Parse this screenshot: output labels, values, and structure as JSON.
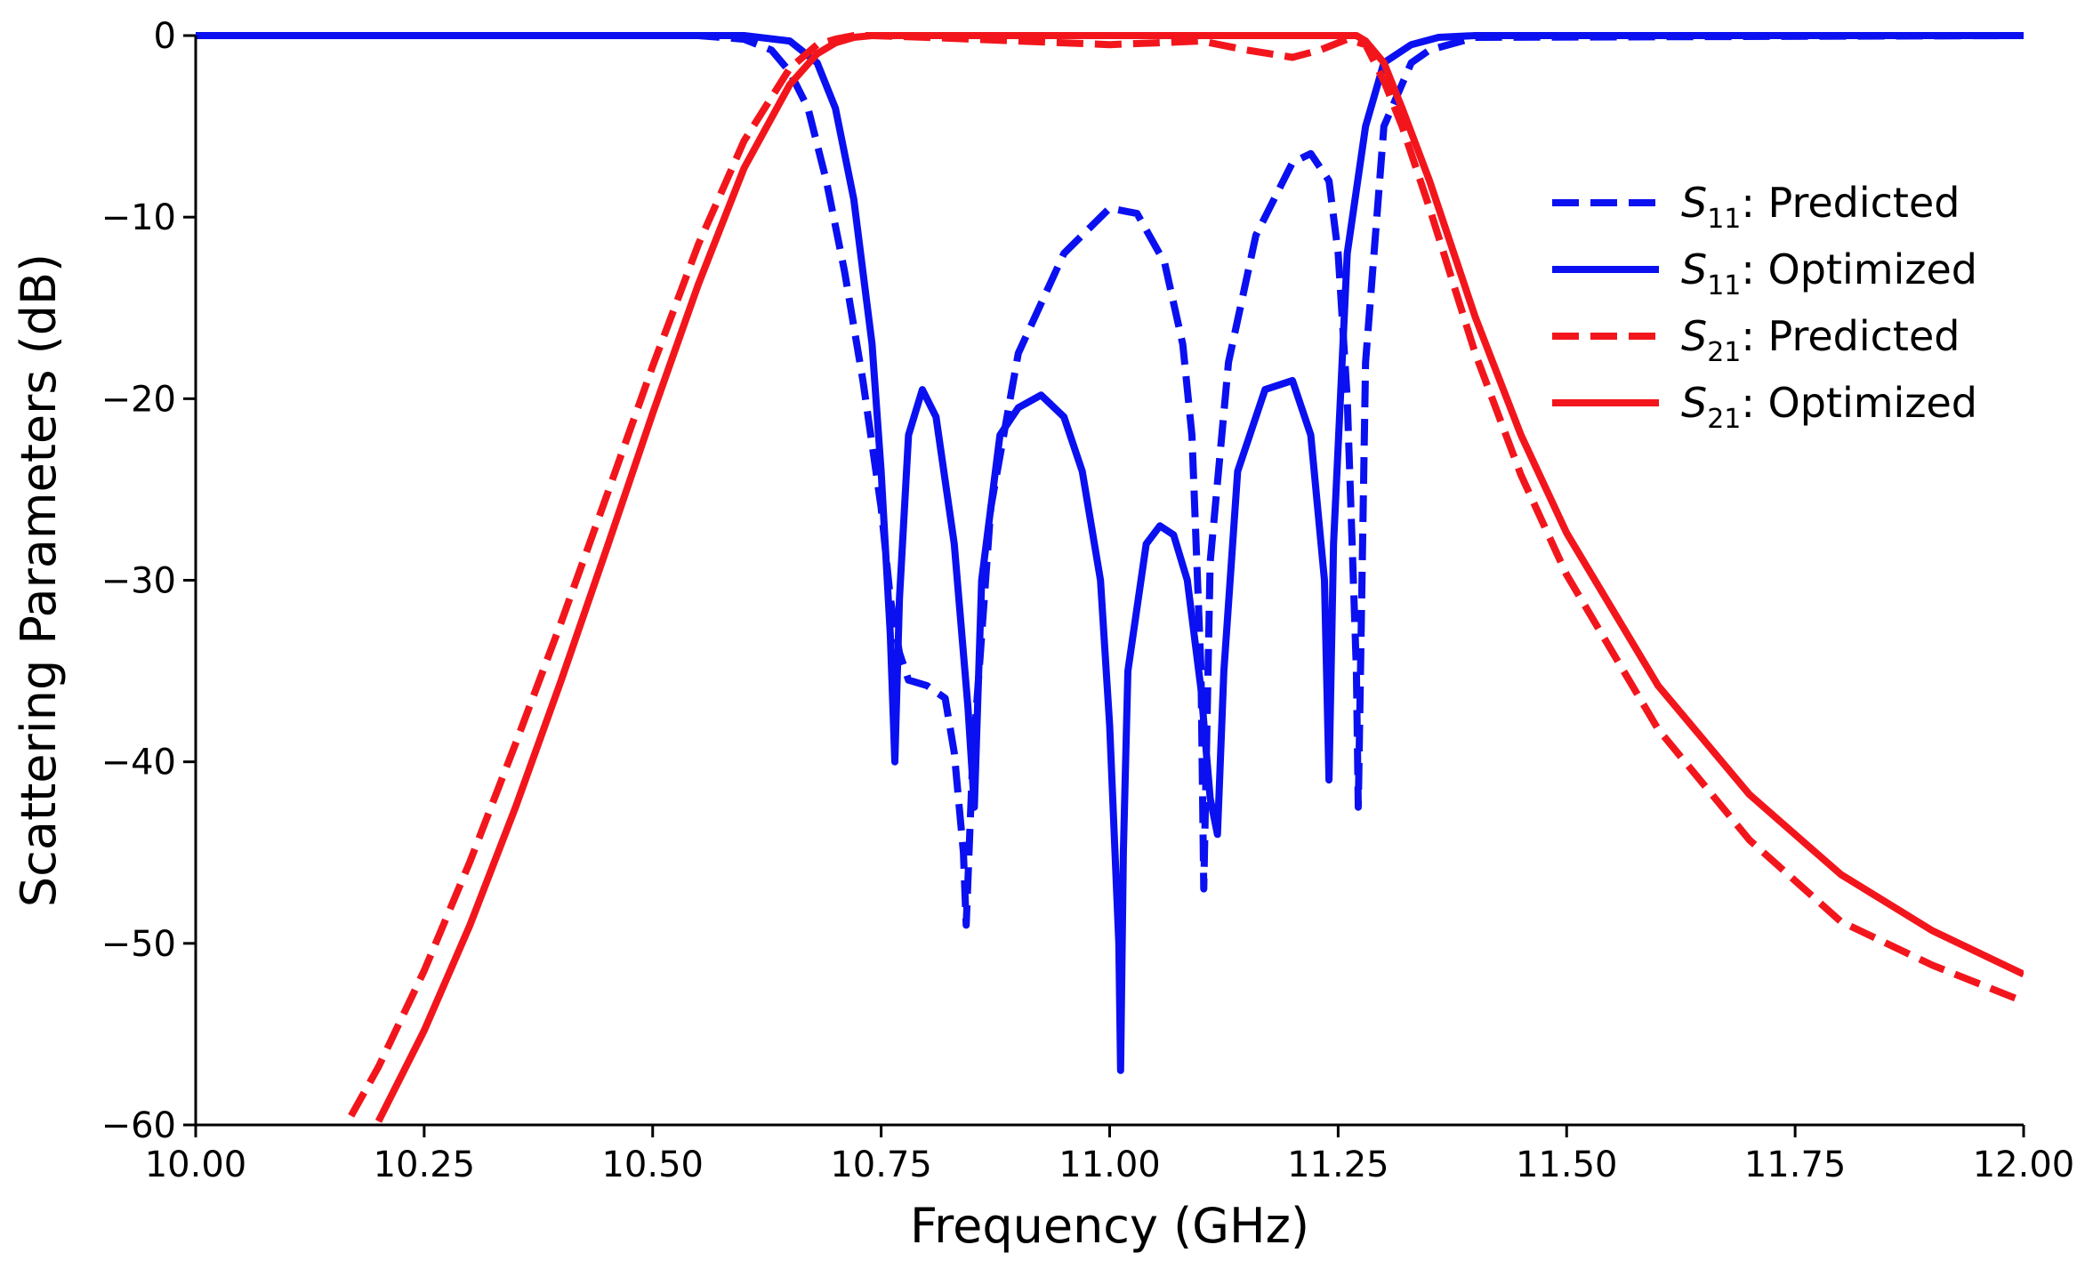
{
  "chart_data": {
    "type": "line",
    "title": "",
    "xlabel": "Frequency (GHz)",
    "ylabel": "Scattering Parameters (dB)",
    "xlim": [
      10.0,
      12.0
    ],
    "ylim": [
      -60,
      0
    ],
    "xticks": [
      10.0,
      10.25,
      10.5,
      10.75,
      11.0,
      11.25,
      11.5,
      11.75,
      12.0
    ],
    "xtick_labels": [
      "10.00",
      "10.25",
      "10.50",
      "10.75",
      "11.00",
      "11.25",
      "11.50",
      "11.75",
      "12.00"
    ],
    "yticks": [
      0,
      -10,
      -20,
      -30,
      -40,
      -50,
      -60
    ],
    "ytick_labels": [
      "0",
      "−10",
      "−20",
      "−30",
      "−40",
      "−50",
      "−60"
    ],
    "grid": false,
    "legend_position": "right",
    "series": [
      {
        "name": "S11: Predicted",
        "legend_base": "S",
        "legend_sub": "11",
        "legend_suffix": ": Predicted",
        "color": "#0a10f0",
        "style": "dashed",
        "x": [
          10.0,
          10.55,
          10.6,
          10.63,
          10.65,
          10.67,
          10.69,
          10.71,
          10.73,
          10.75,
          10.76,
          10.77,
          10.78,
          10.8,
          10.82,
          10.83,
          10.84,
          10.843,
          10.85,
          10.87,
          10.9,
          10.95,
          11.0,
          11.03,
          11.06,
          11.08,
          11.09,
          11.1,
          11.103,
          11.11,
          11.13,
          11.16,
          11.2,
          11.22,
          11.24,
          11.25,
          11.26,
          11.27,
          11.272,
          11.28,
          11.3,
          11.33,
          11.35,
          11.4,
          12.0
        ],
        "values": [
          0,
          0,
          -0.2,
          -0.8,
          -2,
          -4,
          -8,
          -13,
          -19,
          -26,
          -31,
          -34,
          -35.5,
          -35.8,
          -36.5,
          -39.5,
          -45,
          -49,
          -40,
          -26,
          -17.5,
          -12,
          -9.5,
          -9.8,
          -12.5,
          -17,
          -22,
          -35,
          -47,
          -29,
          -18,
          -11,
          -7,
          -6.5,
          -8,
          -12,
          -20,
          -35,
          -42.5,
          -18,
          -5,
          -1.5,
          -0.8,
          -0.1,
          0
        ]
      },
      {
        "name": "S11: Optimized",
        "legend_base": "S",
        "legend_sub": "11",
        "legend_suffix": ": Optimized",
        "color": "#0a10f0",
        "style": "solid",
        "x": [
          10.0,
          10.6,
          10.65,
          10.68,
          10.7,
          10.72,
          10.74,
          10.75,
          10.76,
          10.765,
          10.77,
          10.78,
          10.795,
          10.81,
          10.83,
          10.845,
          10.852,
          10.86,
          10.88,
          10.9,
          10.925,
          10.95,
          10.97,
          10.99,
          11.0,
          11.01,
          11.012,
          11.015,
          11.02,
          11.04,
          11.055,
          11.07,
          11.085,
          11.1,
          11.11,
          11.118,
          11.125,
          11.14,
          11.17,
          11.2,
          11.22,
          11.235,
          11.24,
          11.245,
          11.26,
          11.28,
          11.3,
          11.33,
          11.36,
          11.4,
          12.0
        ],
        "values": [
          0,
          0,
          -0.3,
          -1.5,
          -4,
          -9,
          -17,
          -24,
          -33,
          -40,
          -31,
          -22,
          -19.5,
          -21,
          -28,
          -37,
          -42.5,
          -30,
          -22,
          -20.5,
          -19.8,
          -21,
          -24,
          -30,
          -38,
          -50,
          -57,
          -45,
          -35,
          -28,
          -27,
          -27.5,
          -30,
          -36,
          -42,
          -44,
          -35,
          -24,
          -19.5,
          -19,
          -22,
          -30,
          -41,
          -28,
          -12,
          -5,
          -1.5,
          -0.5,
          -0.1,
          0,
          0
        ]
      },
      {
        "name": "S21: Predicted",
        "legend_base": "S",
        "legend_sub": "21",
        "legend_suffix": ": Predicted",
        "color": "#f2161c",
        "style": "dashed",
        "x": [
          10.17,
          10.2,
          10.25,
          10.3,
          10.35,
          10.4,
          10.45,
          10.5,
          10.55,
          10.6,
          10.65,
          10.68,
          10.7,
          10.72,
          10.74,
          10.8,
          10.9,
          11.0,
          11.05,
          11.1,
          11.15,
          11.2,
          11.23,
          11.26,
          11.28,
          11.3,
          11.32,
          11.35,
          11.4,
          11.45,
          11.5,
          11.6,
          11.7,
          11.8,
          11.9,
          12.0
        ],
        "values": [
          -59.5,
          -56.8,
          -51.5,
          -45.5,
          -39,
          -32.3,
          -25.3,
          -18.2,
          -11.5,
          -5.8,
          -1.8,
          -0.5,
          -0.2,
          0,
          0,
          -0.1,
          -0.3,
          -0.5,
          -0.4,
          -0.3,
          -0.8,
          -1.2,
          -0.8,
          -0.2,
          -0.5,
          -2.5,
          -5,
          -9.5,
          -17.5,
          -24.2,
          -29.7,
          -38.2,
          -44.3,
          -48.8,
          -51.2,
          -53.2
        ]
      },
      {
        "name": "S21: Optimized",
        "legend_base": "S",
        "legend_sub": "21",
        "legend_suffix": ": Optimized",
        "color": "#f2161c",
        "style": "solid",
        "x": [
          10.2,
          10.25,
          10.3,
          10.35,
          10.4,
          10.45,
          10.5,
          10.55,
          10.6,
          10.65,
          10.68,
          10.7,
          10.72,
          10.74,
          10.76,
          11.0,
          11.27,
          11.28,
          11.3,
          11.32,
          11.35,
          11.4,
          11.45,
          11.5,
          11.6,
          11.7,
          11.8,
          11.9,
          12.0
        ],
        "values": [
          -59.8,
          -54.8,
          -49,
          -42.5,
          -35.5,
          -28.2,
          -20.8,
          -13.7,
          -7.3,
          -2.7,
          -1,
          -0.4,
          -0.1,
          0,
          0,
          0,
          0,
          -0.3,
          -1.5,
          -4,
          -8,
          -15.5,
          -22,
          -27.4,
          -35.8,
          -41.8,
          -46.2,
          -49.3,
          -51.7
        ]
      }
    ]
  }
}
